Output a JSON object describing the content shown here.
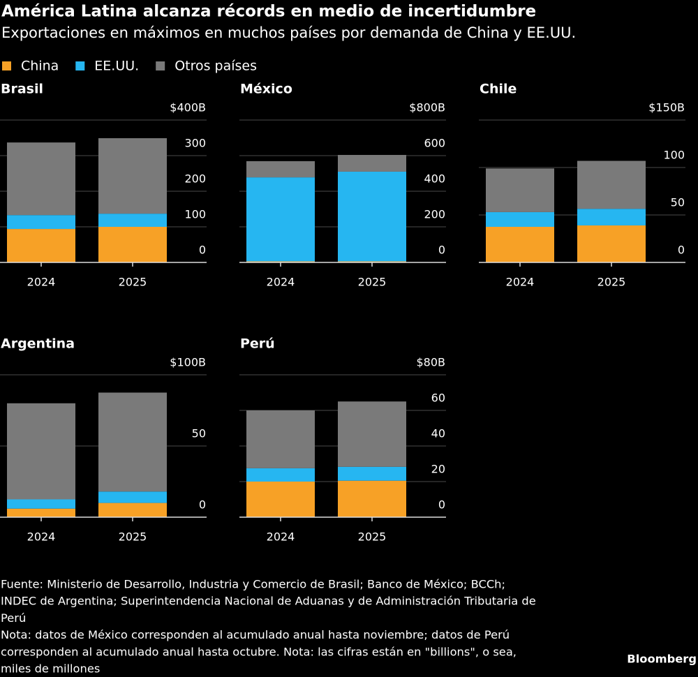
{
  "title": "América Latina alcanza récords en medio de incertidumbre",
  "subtitle": "Exportaciones en máximos en muchos países por demanda de China y EE.UU.",
  "legend": [
    {
      "name": "China",
      "color": "#f7a126"
    },
    {
      "name": "EE.UU.",
      "color": "#26b6f1"
    },
    {
      "name": "Otros países",
      "color": "#7a7a7a"
    }
  ],
  "chart_data": [
    {
      "type": "bar",
      "stacked": true,
      "title": "Brasil",
      "categories": [
        "2024",
        "2025"
      ],
      "series": [
        {
          "values": [
            94,
            100
          ]
        },
        {
          "values": [
            39,
            37
          ]
        },
        {
          "values": [
            204,
            212
          ]
        }
      ],
      "ylim": [
        0,
        400
      ],
      "yticks": [
        0,
        100,
        200,
        300,
        {
          "value": 400,
          "label": "$400B"
        }
      ],
      "grid": true
    },
    {
      "type": "bar",
      "stacked": true,
      "title": "México",
      "categories": [
        "2024",
        "2025"
      ],
      "series": [
        {
          "values": [
            6,
            6
          ]
        },
        {
          "values": [
            472,
            504
          ]
        },
        {
          "values": [
            91,
            94
          ]
        }
      ],
      "ylim": [
        0,
        800
      ],
      "yticks": [
        0,
        200,
        400,
        600,
        {
          "value": 800,
          "label": "$800B"
        }
      ],
      "grid": true
    },
    {
      "type": "bar",
      "stacked": true,
      "title": "Chile",
      "categories": [
        "2024",
        "2025"
      ],
      "series": [
        {
          "values": [
            37.5,
            39
          ]
        },
        {
          "values": [
            15.5,
            17.5
          ]
        },
        {
          "values": [
            46,
            50.5
          ]
        }
      ],
      "ylim": [
        0,
        150
      ],
      "yticks": [
        0,
        50,
        100,
        {
          "value": 150,
          "label": "$150B"
        }
      ],
      "grid": true
    },
    {
      "type": "bar",
      "stacked": true,
      "title": "Argentina",
      "categories": [
        "2024",
        "2025"
      ],
      "series": [
        {
          "values": [
            6,
            10
          ]
        },
        {
          "values": [
            6.5,
            8
          ]
        },
        {
          "values": [
            67.5,
            69.5
          ]
        }
      ],
      "ylim": [
        0,
        100
      ],
      "yticks": [
        0,
        50,
        {
          "value": 100,
          "label": "$100B"
        }
      ],
      "grid": true
    },
    {
      "type": "bar",
      "stacked": true,
      "title": "Perú",
      "categories": [
        "2024",
        "2025"
      ],
      "series": [
        {
          "values": [
            20,
            20.5
          ]
        },
        {
          "values": [
            7.5,
            7.8
          ]
        },
        {
          "values": [
            32.5,
            36.7
          ]
        }
      ],
      "ylim": [
        0,
        80
      ],
      "yticks": [
        0,
        20,
        40,
        60,
        {
          "value": 80,
          "label": "$80B"
        }
      ],
      "grid": true
    }
  ],
  "source": [
    "Fuente: Ministerio de Desarrollo, Industria y Comercio de Brasil; Banco de México; BCCh;",
    "INDEC de Argentina; Superintendencia Nacional de Aduanas y de Administración Tributaria de",
    "Perú"
  ],
  "note": [
    "Nota: datos de México corresponden al acumulado anual hasta noviembre; datos de Perú",
    "corresponden al acumulado anual hasta octubre. Nota: las cifras están en \"billions\", o sea,",
    "miles de millones"
  ],
  "brand": "Bloomberg"
}
